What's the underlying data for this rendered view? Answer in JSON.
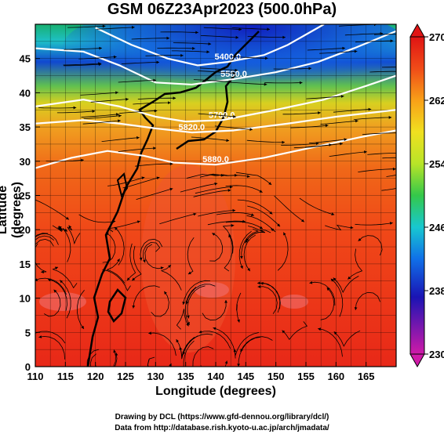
{
  "title": "GSM 06Z23Apr2023 (500.0hPa)",
  "xlabel": "Longitude (degrees)",
  "ylabel": "Latitude  (degrees)",
  "credit_line1": "Drawing by DCL (https://www.gfd-dennou.org/library/dcl/)",
  "credit_line2": "Data from http://database.rish.kyoto-u.ac.jp/arch/jmadata/",
  "chart_data": {
    "type": "heatmap",
    "x_ticks": [
      "110",
      "115",
      "120",
      "125",
      "130",
      "135",
      "140",
      "145",
      "150",
      "155",
      "160",
      "165"
    ],
    "y_ticks": [
      "0",
      "5",
      "10",
      "15",
      "20",
      "25",
      "30",
      "35",
      "40",
      "45"
    ],
    "xlim": [
      110,
      170
    ],
    "ylim": [
      0,
      50
    ],
    "colorbar": {
      "ticks": [
        "270",
        "262",
        "254",
        "246",
        "238",
        "230"
      ],
      "range": [
        230,
        270
      ],
      "colors": [
        "#d01aa8",
        "#1a14b4",
        "#1070e8",
        "#18c8d0",
        "#34c84a",
        "#b8e428",
        "#f0e020",
        "#f8a018",
        "#f04c18",
        "#e01414"
      ]
    },
    "contour_labels": [
      "5580.0",
      "5400.0",
      "5820.0",
      "5700.0",
      "5880.0"
    ],
    "contours": [
      {
        "label": "5400.0",
        "points": [
          [
            120,
            49.5
          ],
          [
            126,
            47
          ],
          [
            132,
            45
          ],
          [
            137,
            44
          ],
          [
            142,
            44.5
          ],
          [
            148,
            45.5
          ],
          [
            152,
            47
          ],
          [
            156,
            49
          ],
          [
            158,
            50
          ]
        ]
      },
      {
        "label": "5580.0",
        "points": [
          [
            110,
            46.5
          ],
          [
            118,
            46
          ],
          [
            124,
            44
          ],
          [
            130,
            41.5
          ],
          [
            136,
            41.2
          ],
          [
            143,
            42
          ],
          [
            150,
            43
          ],
          [
            157,
            44.5
          ],
          [
            163,
            46.5
          ],
          [
            170,
            49
          ]
        ]
      },
      {
        "label": "5700.0",
        "points": [
          [
            110,
            38
          ],
          [
            118,
            39
          ],
          [
            124,
            38
          ],
          [
            130,
            36.5
          ],
          [
            135,
            35.8
          ],
          [
            141,
            36
          ],
          [
            150,
            37.5
          ],
          [
            158,
            39
          ],
          [
            165,
            41
          ],
          [
            170,
            42.5
          ]
        ]
      },
      {
        "label": "5820.0",
        "points": [
          [
            110,
            35.5
          ],
          [
            118,
            36
          ],
          [
            124,
            35.5
          ],
          [
            130,
            34.8
          ],
          [
            136,
            34.2
          ],
          [
            143,
            34.5
          ],
          [
            152,
            35.5
          ],
          [
            160,
            36.5
          ],
          [
            170,
            37.5
          ]
        ]
      },
      {
        "label": "5880.0",
        "points": [
          [
            110,
            29
          ],
          [
            116,
            30.5
          ],
          [
            122,
            31.5
          ],
          [
            128,
            30.8
          ],
          [
            133,
            29.8
          ],
          [
            140,
            29.5
          ],
          [
            148,
            30.5
          ],
          [
            156,
            32
          ],
          [
            164,
            33.5
          ],
          [
            170,
            34.5
          ]
        ]
      }
    ]
  }
}
